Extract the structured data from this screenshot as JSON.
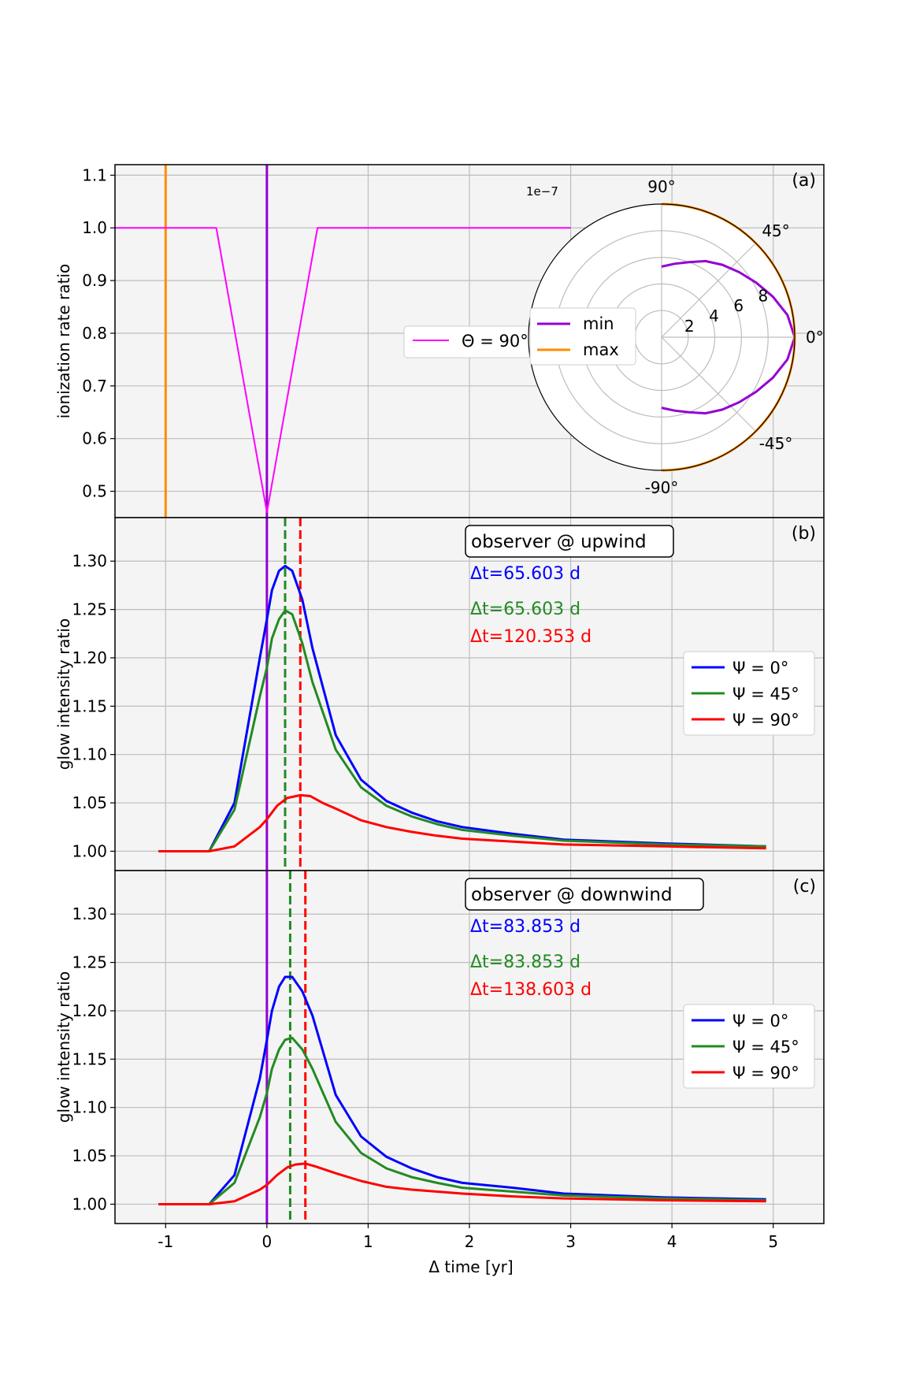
{
  "chart_data": {
    "type": "line",
    "shared_x": {
      "label": "Δ time [yr]",
      "lim": [
        -1.5,
        5.5
      ],
      "ticks": [
        -1,
        0,
        1,
        2,
        3,
        4,
        5
      ],
      "tick_labels": [
        "-1",
        "0",
        "1",
        "2",
        "3",
        "4",
        "5"
      ]
    },
    "panels": [
      {
        "id": "a",
        "panel_label": "(a)",
        "ylabel": "ionization rate ratio",
        "ylim": [
          0.45,
          1.12
        ],
        "yticks": [
          0.5,
          0.6,
          0.7,
          0.8,
          0.9,
          1.0,
          1.1
        ],
        "ytick_labels": [
          "0.5",
          "0.6",
          "0.7",
          "0.8",
          "0.9",
          "1.0",
          "1.1"
        ],
        "grid": true,
        "vlines": [
          {
            "x": -1.0,
            "color": "#ff8c00",
            "style": "solid"
          },
          {
            "x": 0.0,
            "color": "#9400d3",
            "style": "solid"
          }
        ],
        "series": [
          {
            "name": "Θ = 90°",
            "color": "#ff00ff",
            "x": [
              -1.5,
              -0.5,
              0.0,
              0.5,
              3.0
            ],
            "y": [
              1.0,
              1.0,
              0.46,
              1.0,
              1.0
            ]
          }
        ],
        "legend": {
          "entries": [
            "Θ = 90°"
          ],
          "position": "center-right (partly hidden behind inset)"
        },
        "inset": {
          "type": "polar",
          "scale_label": "1e−7",
          "r_max": 10,
          "r_ticks": [
            2,
            4,
            6,
            8
          ],
          "r_tick_labels": [
            "2",
            "4",
            "6",
            "8"
          ],
          "theta_ticks_deg": [
            90,
            45,
            0,
            -45,
            -90
          ],
          "theta_tick_labels": [
            "90°",
            "45°",
            "0°",
            "-45°",
            "-90°"
          ],
          "series": [
            {
              "name": "min",
              "color": "#9400d3",
              "theta_deg": [
                -90,
                -80,
                -70,
                -60,
                -50,
                -40,
                -30,
                -20,
                -10,
                0,
                10,
                20,
                30,
                40,
                50,
                60,
                70,
                80,
                90
              ],
              "r": [
                5.3,
                5.6,
                6.0,
                6.6,
                7.1,
                7.6,
                8.2,
                8.9,
                9.6,
                10.0,
                9.6,
                8.9,
                8.2,
                7.6,
                7.1,
                6.6,
                6.0,
                5.6,
                5.3
              ]
            },
            {
              "name": "max",
              "color": "#ff8c00",
              "theta_deg": [
                -90,
                -60,
                -30,
                0,
                30,
                60,
                90
              ],
              "r": [
                10,
                10,
                10,
                10,
                10,
                10,
                10
              ]
            }
          ],
          "legend": [
            "min",
            "max"
          ]
        }
      },
      {
        "id": "b",
        "panel_label": "(b)",
        "title_box": "observer @ upwind",
        "ylabel": "glow intensity ratio",
        "ylim": [
          0.98,
          1.345
        ],
        "yticks": [
          1.0,
          1.05,
          1.1,
          1.15,
          1.2,
          1.25,
          1.3
        ],
        "ytick_labels": [
          "1.00",
          "1.05",
          "1.10",
          "1.15",
          "1.20",
          "1.25",
          "1.30"
        ],
        "grid": true,
        "vlines": [
          {
            "x": 0.0,
            "color": "#9400d3",
            "style": "solid"
          },
          {
            "x": 0.18,
            "color": "#228b22",
            "style": "dashed"
          },
          {
            "x": 0.33,
            "color": "#ff0000",
            "style": "dashed"
          }
        ],
        "annotations": [
          {
            "text": "Δt=65.603 d",
            "color": "#0000ff"
          },
          {
            "text": "Δt=65.603 d",
            "color": "#228b22"
          },
          {
            "text": "Δt=120.353 d",
            "color": "#ff0000"
          }
        ],
        "series": [
          {
            "name": "Ψ = 0°",
            "color": "#0000ff",
            "x": [
              -1.07,
              -0.57,
              -0.32,
              -0.07,
              0.0,
              0.05,
              0.12,
              0.18,
              0.25,
              0.35,
              0.45,
              0.68,
              0.93,
              1.18,
              1.43,
              1.68,
              1.93,
              2.43,
              2.93,
              3.93,
              4.93
            ],
            "y": [
              1.0,
              1.0,
              1.05,
              1.2,
              1.24,
              1.27,
              1.29,
              1.295,
              1.29,
              1.26,
              1.21,
              1.12,
              1.074,
              1.052,
              1.04,
              1.031,
              1.025,
              1.018,
              1.012,
              1.008,
              1.005
            ]
          },
          {
            "name": "Ψ = 45°",
            "color": "#228b22",
            "x": [
              -1.07,
              -0.57,
              -0.32,
              -0.07,
              0.0,
              0.05,
              0.12,
              0.18,
              0.25,
              0.35,
              0.45,
              0.68,
              0.93,
              1.18,
              1.43,
              1.68,
              1.93,
              2.43,
              2.93,
              3.93,
              4.93
            ],
            "y": [
              1.0,
              1.0,
              1.043,
              1.16,
              1.19,
              1.22,
              1.24,
              1.249,
              1.245,
              1.215,
              1.175,
              1.105,
              1.066,
              1.047,
              1.036,
              1.028,
              1.022,
              1.016,
              1.011,
              1.007,
              1.005
            ]
          },
          {
            "name": "Ψ = 90°",
            "color": "#ff0000",
            "x": [
              -1.07,
              -0.57,
              -0.32,
              -0.07,
              0.0,
              0.1,
              0.2,
              0.33,
              0.43,
              0.55,
              0.68,
              0.93,
              1.18,
              1.43,
              1.68,
              1.93,
              2.43,
              2.93,
              3.93,
              4.93
            ],
            "y": [
              1.0,
              1.0,
              1.005,
              1.025,
              1.033,
              1.047,
              1.055,
              1.058,
              1.057,
              1.05,
              1.044,
              1.032,
              1.025,
              1.02,
              1.016,
              1.013,
              1.01,
              1.007,
              1.005,
              1.003
            ]
          }
        ],
        "legend": {
          "entries": [
            "Ψ = 0°",
            "Ψ = 45°",
            "Ψ = 90°"
          ],
          "position": "center-right"
        }
      },
      {
        "id": "c",
        "panel_label": "(c)",
        "title_box": "observer @ downwind",
        "ylabel": "glow intensity ratio",
        "ylim": [
          0.98,
          1.345
        ],
        "yticks": [
          1.0,
          1.05,
          1.1,
          1.15,
          1.2,
          1.25,
          1.3
        ],
        "ytick_labels": [
          "1.00",
          "1.05",
          "1.10",
          "1.15",
          "1.20",
          "1.25",
          "1.30"
        ],
        "grid": true,
        "vlines": [
          {
            "x": 0.0,
            "color": "#9400d3",
            "style": "solid"
          },
          {
            "x": 0.23,
            "color": "#228b22",
            "style": "dashed"
          },
          {
            "x": 0.38,
            "color": "#ff0000",
            "style": "dashed"
          }
        ],
        "annotations": [
          {
            "text": "Δt=83.853 d",
            "color": "#0000ff"
          },
          {
            "text": "Δt=83.853 d",
            "color": "#228b22"
          },
          {
            "text": "Δt=138.603 d",
            "color": "#ff0000"
          }
        ],
        "series": [
          {
            "name": "Ψ = 0°",
            "color": "#0000ff",
            "x": [
              -1.07,
              -0.57,
              -0.32,
              -0.07,
              0.0,
              0.05,
              0.12,
              0.18,
              0.25,
              0.35,
              0.45,
              0.68,
              0.93,
              1.18,
              1.43,
              1.68,
              1.93,
              2.43,
              2.93,
              3.93,
              4.93
            ],
            "y": [
              1.0,
              1.0,
              1.03,
              1.13,
              1.17,
              1.2,
              1.225,
              1.235,
              1.235,
              1.22,
              1.195,
              1.113,
              1.07,
              1.049,
              1.037,
              1.028,
              1.022,
              1.017,
              1.011,
              1.007,
              1.005
            ]
          },
          {
            "name": "Ψ = 45°",
            "color": "#228b22",
            "x": [
              -1.07,
              -0.57,
              -0.32,
              -0.07,
              0.0,
              0.05,
              0.12,
              0.18,
              0.25,
              0.35,
              0.45,
              0.68,
              0.93,
              1.18,
              1.43,
              1.68,
              1.93,
              2.43,
              2.93,
              3.93,
              4.93
            ],
            "y": [
              1.0,
              1.0,
              1.022,
              1.09,
              1.115,
              1.14,
              1.16,
              1.17,
              1.172,
              1.16,
              1.14,
              1.085,
              1.053,
              1.037,
              1.028,
              1.022,
              1.017,
              1.013,
              1.009,
              1.006,
              1.004
            ]
          },
          {
            "name": "Ψ = 90°",
            "color": "#ff0000",
            "x": [
              -1.07,
              -0.57,
              -0.32,
              -0.07,
              0.0,
              0.1,
              0.2,
              0.28,
              0.38,
              0.48,
              0.68,
              0.93,
              1.18,
              1.43,
              1.68,
              1.93,
              2.43,
              2.93,
              3.93,
              4.93
            ],
            "y": [
              1.0,
              1.0,
              1.003,
              1.015,
              1.02,
              1.03,
              1.038,
              1.041,
              1.042,
              1.039,
              1.032,
              1.024,
              1.018,
              1.015,
              1.013,
              1.011,
              1.008,
              1.006,
              1.004,
              1.003
            ]
          }
        ],
        "legend": {
          "entries": [
            "Ψ = 0°",
            "Ψ = 45°",
            "Ψ = 90°"
          ],
          "position": "center-right"
        }
      }
    ]
  }
}
